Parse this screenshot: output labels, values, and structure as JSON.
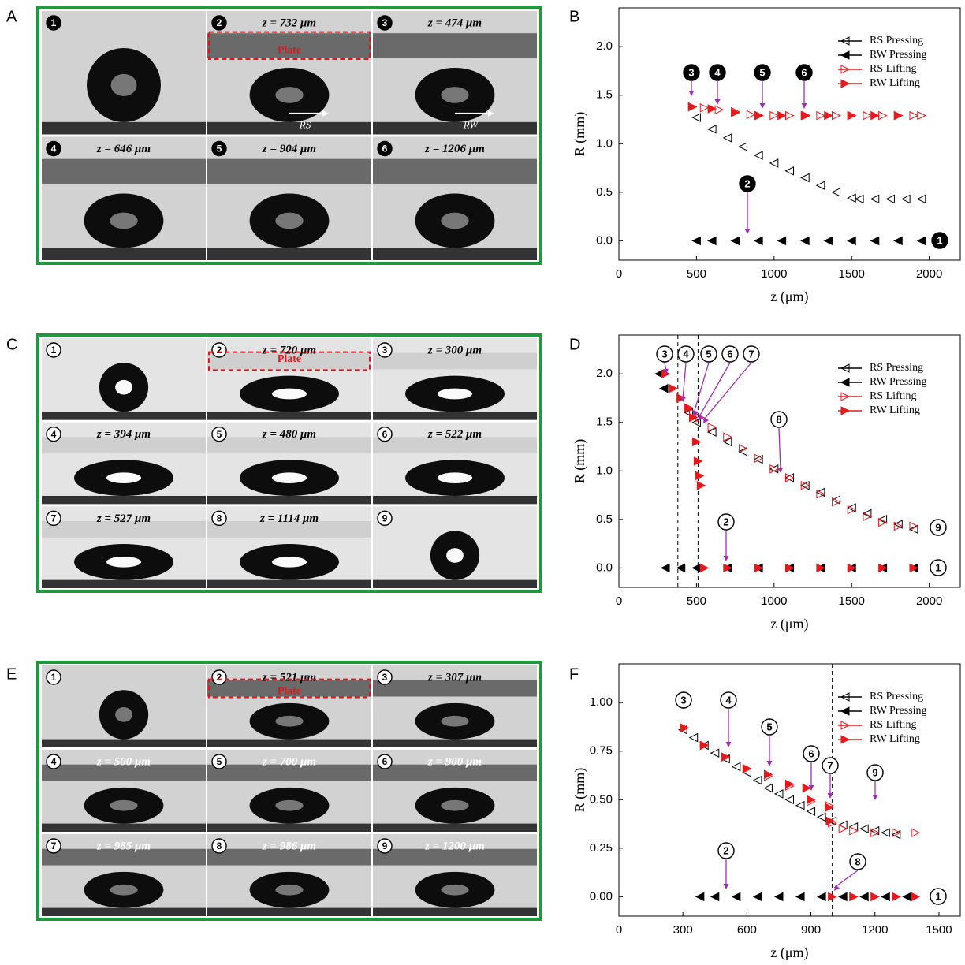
{
  "panel_labels": [
    "A",
    "B",
    "C",
    "D",
    "E",
    "F"
  ],
  "photo_panels": [
    {
      "cells": [
        {
          "number": "1"
        },
        {
          "number": "2",
          "caption": "z = 732 μm"
        },
        {
          "number": "3",
          "caption": "z = 474 μm"
        },
        {
          "number": "4",
          "caption": "z = 646 μm"
        },
        {
          "number": "5",
          "caption": "z = 904 μm"
        },
        {
          "number": "6",
          "caption": "z = 1206 μm"
        }
      ],
      "plate": "Plate",
      "arrows": [
        "RS",
        "RW"
      ]
    },
    {
      "cells": [
        {
          "number": "1"
        },
        {
          "number": "2",
          "caption": "z = 720 μm"
        },
        {
          "number": "3",
          "caption": "z = 300 μm"
        },
        {
          "number": "4",
          "caption": "z = 394 μm"
        },
        {
          "number": "5",
          "caption": "z = 480 μm"
        },
        {
          "number": "6",
          "caption": "z = 522 μm"
        },
        {
          "number": "7",
          "caption": "z = 527 μm"
        },
        {
          "number": "8",
          "caption": "z = 1114 μm"
        },
        {
          "number": "9"
        }
      ],
      "plate": "Plate"
    },
    {
      "cells": [
        {
          "number": "1"
        },
        {
          "number": "2",
          "caption": "z = 521 μm"
        },
        {
          "number": "3",
          "caption": "z = 307 μm"
        },
        {
          "number": "4",
          "caption": "z = 500 μm"
        },
        {
          "number": "5",
          "caption": "z = 700 μm"
        },
        {
          "number": "6",
          "caption": "z = 900 μm"
        },
        {
          "number": "7",
          "caption": "z = 985 μm"
        },
        {
          "number": "8",
          "caption": "z = 986 μm"
        },
        {
          "number": "9",
          "caption": "z = 1200 μm"
        }
      ],
      "plate": "Plate"
    }
  ],
  "chart_data": [
    {
      "type": "scatter",
      "xlabel": "z (μm)",
      "ylabel": "R (mm)",
      "legend": "upper right",
      "xlim": [
        0,
        2200
      ],
      "xticks": [
        0,
        500,
        1000,
        1500,
        2000
      ],
      "ylim": [
        -0.2,
        2.4
      ],
      "yticks": [
        {
          "value": 0,
          "label": "0.0"
        },
        0.5,
        {
          "value": 1,
          "label": "1.0"
        },
        1.5,
        {
          "value": 2,
          "label": "2.0"
        }
      ],
      "series": [
        {
          "name": "RS Pressing",
          "color": "#000000",
          "marker": "left-open",
          "x": [
            1950,
            1850,
            1750,
            1650,
            1550,
            1500,
            1400,
            1300,
            1200,
            1100,
            1000,
            900,
            800,
            700,
            600,
            500
          ],
          "values": [
            0.43,
            0.43,
            0.43,
            0.43,
            0.43,
            0.44,
            0.5,
            0.57,
            0.65,
            0.72,
            0.8,
            0.88,
            0.97,
            1.06,
            1.15,
            1.27
          ]
        },
        {
          "name": "RW Pressing",
          "color": "#000000",
          "marker": "left-filled",
          "x": [
            1950,
            1800,
            1650,
            1500,
            1350,
            1200,
            1050,
            900,
            750,
            600,
            500
          ],
          "values": [
            0,
            0,
            0,
            0,
            0,
            0,
            0,
            0,
            0,
            0,
            0
          ]
        },
        {
          "name": "RS Lifting",
          "color": "#e41a1c",
          "marker": "right-open",
          "x": [
            474,
            550,
            646,
            750,
            850,
            904,
            1000,
            1100,
            1206,
            1300,
            1400,
            1500,
            1600,
            1700,
            1800,
            1900,
            1950
          ],
          "values": [
            1.38,
            1.37,
            1.35,
            1.33,
            1.3,
            1.29,
            1.29,
            1.29,
            1.29,
            1.29,
            1.29,
            1.29,
            1.29,
            1.29,
            1.29,
            1.29,
            1.29
          ]
        },
        {
          "name": "RW Lifting",
          "color": "#e41a1c",
          "marker": "right-filled",
          "x": [
            474,
            600,
            750,
            900,
            1050,
            1200,
            1350,
            1500,
            1650,
            1800
          ],
          "values": [
            1.38,
            1.36,
            1.32,
            1.29,
            1.29,
            1.29,
            1.29,
            1.29,
            1.29,
            1.29
          ]
        }
      ],
      "annotations": [
        "3",
        "4",
        "5",
        "6",
        "2",
        "1"
      ]
    },
    {
      "type": "scatter",
      "xlabel": "z (μm)",
      "ylabel": "R (mm)",
      "legend": "upper right",
      "xlim": [
        0,
        2200
      ],
      "xticks": [
        0,
        500,
        1000,
        1500,
        2000
      ],
      "ylim": [
        -0.2,
        2.4
      ],
      "yticks": [
        {
          "value": 0,
          "label": "0.0"
        },
        0.5,
        {
          "value": 1,
          "label": "1.0"
        },
        1.5,
        {
          "value": 2,
          "label": "2.0"
        }
      ],
      "reference_lines": [
        380,
        510
      ],
      "series": [
        {
          "name": "RS Pressing",
          "color": "#000000",
          "marker": "left-open",
          "x": [
            1900,
            1800,
            1700,
            1600,
            1500,
            1400,
            1300,
            1200,
            1100,
            1000,
            900,
            800,
            700,
            600,
            500,
            450
          ],
          "values": [
            0.4,
            0.45,
            0.5,
            0.56,
            0.62,
            0.7,
            0.78,
            0.85,
            0.93,
            1.02,
            1.12,
            1.2,
            1.3,
            1.4,
            1.5,
            1.6
          ]
        },
        {
          "name": "RW Pressing",
          "color": "#000000",
          "marker": "left-filled",
          "x": [
            1900,
            1700,
            1500,
            1300,
            1100,
            900,
            700,
            500,
            400,
            300,
            290,
            260
          ],
          "values": [
            0,
            0,
            0,
            0,
            0,
            0,
            0,
            0,
            0,
            0,
            1.85,
            2.0
          ]
        },
        {
          "name": "RS Lifting",
          "color": "#e41a1c",
          "marker": "right-open",
          "x": [
            300,
            400,
            480,
            522,
            600,
            700,
            800,
            900,
            1000,
            1100,
            1200,
            1300,
            1400,
            1500,
            1600,
            1700,
            1800,
            1900
          ],
          "values": [
            2.0,
            1.75,
            1.6,
            1.55,
            1.45,
            1.35,
            1.23,
            1.13,
            1.02,
            0.93,
            0.85,
            0.76,
            0.68,
            0.6,
            0.53,
            0.47,
            0.43,
            0.43
          ]
        },
        {
          "name": "RW Lifting",
          "color": "#e41a1c",
          "marker": "right-filled",
          "x": [
            300,
            350,
            400,
            450,
            480,
            500,
            510,
            520,
            530,
            550,
            700,
            900,
            1100,
            1300,
            1500,
            1700,
            1900
          ],
          "values": [
            2.0,
            1.85,
            1.75,
            1.65,
            1.55,
            1.3,
            1.1,
            0.95,
            0.85,
            0,
            0,
            0,
            0,
            0,
            0,
            0,
            0
          ]
        }
      ],
      "annotations": [
        "3",
        "4",
        "5",
        "6",
        "7",
        "8",
        "2",
        "9",
        "1"
      ]
    },
    {
      "type": "scatter",
      "xlabel": "z (μm)",
      "ylabel": "R (mm)",
      "legend": "upper right",
      "xlim": [
        0,
        1600
      ],
      "xticks": [
        0,
        300,
        600,
        900,
        1200,
        1500
      ],
      "ylim": [
        -0.1,
        1.2
      ],
      "yticks": [
        {
          "value": 0,
          "label": "0.00"
        },
        0.25,
        {
          "value": 0.5,
          "label": "0.50"
        },
        0.75,
        {
          "value": 1,
          "label": "1.00"
        }
      ],
      "reference_lines": [
        1000
      ],
      "series": [
        {
          "name": "RS Pressing",
          "color": "#000000",
          "marker": "left-open",
          "x": [
            1300,
            1250,
            1200,
            1150,
            1100,
            1050,
            1000,
            950,
            900,
            850,
            800,
            750,
            700,
            650,
            600,
            550,
            500,
            450,
            400,
            350,
            300
          ],
          "values": [
            0.32,
            0.33,
            0.34,
            0.35,
            0.36,
            0.37,
            0.39,
            0.41,
            0.44,
            0.47,
            0.5,
            0.53,
            0.56,
            0.6,
            0.64,
            0.67,
            0.71,
            0.74,
            0.78,
            0.82,
            0.86
          ]
        },
        {
          "name": "RW Pressing",
          "color": "#000000",
          "marker": "left-filled",
          "x": [
            1350,
            1250,
            1150,
            1050,
            950,
            850,
            750,
            650,
            550,
            450,
            380
          ],
          "values": [
            0,
            0,
            0,
            0,
            0,
            0,
            0,
            0,
            0,
            0,
            0
          ]
        },
        {
          "name": "RS Lifting",
          "color": "#e41a1c",
          "marker": "right-open",
          "x": [
            307,
            400,
            500,
            600,
            700,
            800,
            900,
            985,
            1000,
            1050,
            1100,
            1200,
            1300,
            1390
          ],
          "values": [
            0.87,
            0.78,
            0.72,
            0.66,
            0.62,
            0.57,
            0.49,
            0.47,
            0.38,
            0.35,
            0.34,
            0.33,
            0.33,
            0.33
          ]
        },
        {
          "name": "RW Lifting",
          "color": "#e41a1c",
          "marker": "right-filled",
          "x": [
            307,
            400,
            500,
            600,
            700,
            800,
            880,
            900,
            985,
            990,
            1000,
            1100,
            1200,
            1300,
            1390
          ],
          "values": [
            0.87,
            0.78,
            0.72,
            0.66,
            0.63,
            0.58,
            0.56,
            0.5,
            0.46,
            0.39,
            0,
            0,
            0,
            0,
            0
          ]
        }
      ],
      "annotations": [
        "3",
        "4",
        "5",
        "6",
        "7",
        "9",
        "8",
        "2",
        "1"
      ]
    }
  ]
}
